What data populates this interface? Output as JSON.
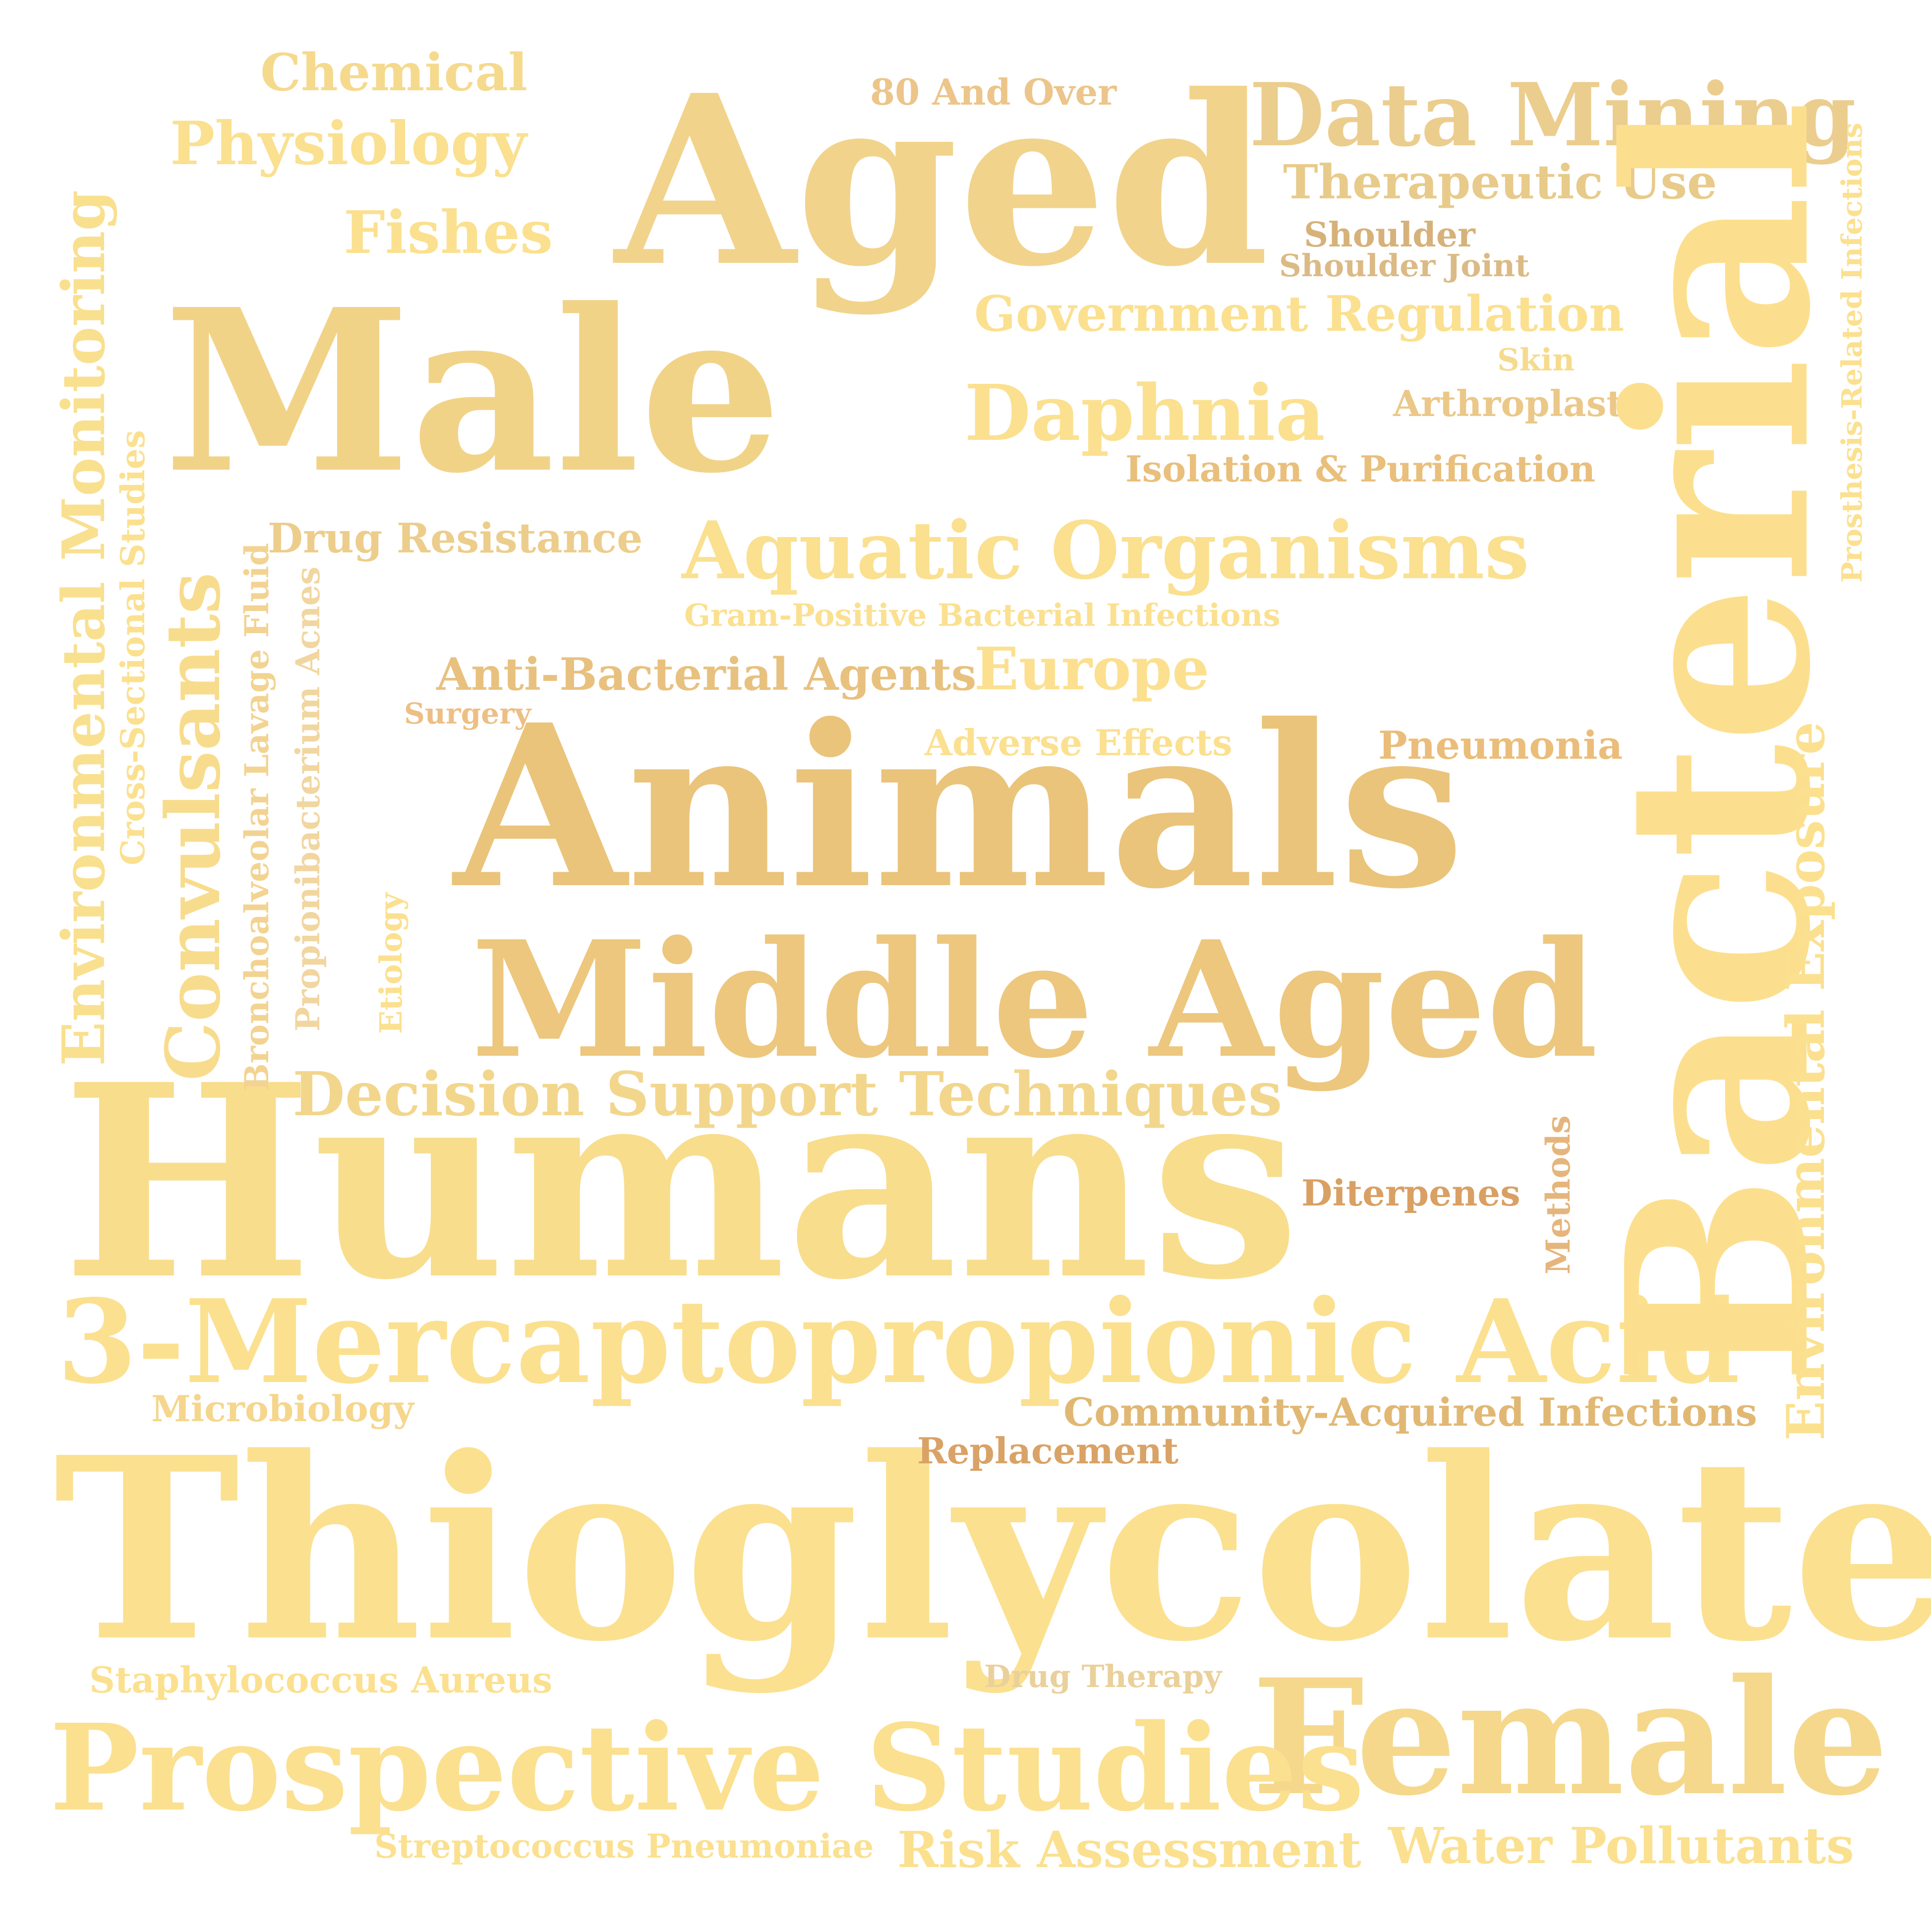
{
  "words": [
    {
      "text": "Thioglycolates",
      "color": "#fbe08f"
    },
    {
      "text": "Humans",
      "color": "#f8dd8c"
    },
    {
      "text": "Animals",
      "color": "#eac47a"
    },
    {
      "text": "Aged",
      "color": "#f1d38b"
    },
    {
      "text": "Male",
      "color": "#f1d388"
    },
    {
      "text": "Bacterial",
      "color": "#fcdf8e"
    },
    {
      "text": "Middle Aged",
      "color": "#ecc77d"
    },
    {
      "text": "Female",
      "color": "#f5d88c"
    },
    {
      "text": "Prospective Studies",
      "color": "#fbe08f"
    },
    {
      "text": "3-Mercaptopropionic Acid",
      "color": "#fbe08f"
    },
    {
      "text": "Data Mining",
      "color": "#ebcd8e"
    },
    {
      "text": "Aquatic Organisms",
      "color": "#fae08f"
    },
    {
      "text": "Decision Support Techniques",
      "color": "#f2d68c"
    },
    {
      "text": "Convulsants",
      "color": "#f8dc8d"
    },
    {
      "text": "Environmental Monitoring",
      "color": "#f9e08f"
    },
    {
      "text": "Daphnia",
      "color": "#fbe08f"
    },
    {
      "text": "Europe",
      "color": "#fce08f"
    },
    {
      "text": "Government Regulation",
      "color": "#fbe08f"
    },
    {
      "text": "Environmental Exposure",
      "color": "#fbe08f"
    },
    {
      "text": "Physiology",
      "color": "#fae08f"
    },
    {
      "text": "Fishes",
      "color": "#fbe08f"
    },
    {
      "text": "Chemical",
      "color": "#f5d98d"
    },
    {
      "text": "Therapeutic Use",
      "color": "#e8cb8a"
    },
    {
      "text": "Risk Assessment",
      "color": "#fbe08f"
    },
    {
      "text": "Water Pollutants",
      "color": "#fbe08f"
    },
    {
      "text": "Anti-Bacterial Agents",
      "color": "#e8c17f"
    },
    {
      "text": "Drug Resistance",
      "color": "#eccd8b"
    },
    {
      "text": "Community-Acquired Infections",
      "color": "#e1b873"
    },
    {
      "text": "Staphylococcus Aureus",
      "color": "#fbe08f"
    },
    {
      "text": "Pneumonia",
      "color": "#ebbd7a"
    },
    {
      "text": "80 And Over",
      "color": "#ecc58a"
    },
    {
      "text": "Isolation & Purification",
      "color": "#e9bf7c"
    },
    {
      "text": "Arthroplasty",
      "color": "#ebc888"
    },
    {
      "text": "Microbiology",
      "color": "#f5d68c"
    },
    {
      "text": "Adverse Effects",
      "color": "#fbe08f"
    },
    {
      "text": "Diterpenes",
      "color": "#d9a063"
    },
    {
      "text": "Replacement",
      "color": "#d9a266"
    },
    {
      "text": "Shoulder",
      "color": "#d6b27a"
    },
    {
      "text": "Shoulder Joint",
      "color": "#dcba85"
    },
    {
      "text": "Skin",
      "color": "#f6db8e"
    },
    {
      "text": "Gram-Positive Bacterial Infections",
      "color": "#fbe08f"
    },
    {
      "text": "Streptococcus Pneumoniae",
      "color": "#fbe08f"
    },
    {
      "text": "Drug Therapy",
      "color": "#ead09a"
    },
    {
      "text": "Surgery",
      "color": "#edbf85"
    },
    {
      "text": "Cross-Sectional Studies",
      "color": "#fbe08f"
    },
    {
      "text": "Bronchoalveolar Lavage Fluid",
      "color": "#f3d391"
    },
    {
      "text": "Propionibacterium Acnes",
      "color": "#f1d6a0"
    },
    {
      "text": "Etiology",
      "color": "#fbe08f"
    },
    {
      "text": "Methods",
      "color": "#e6b57c"
    },
    {
      "text": "Prosthesis-Related Infections",
      "color": "#fbe08f"
    }
  ]
}
